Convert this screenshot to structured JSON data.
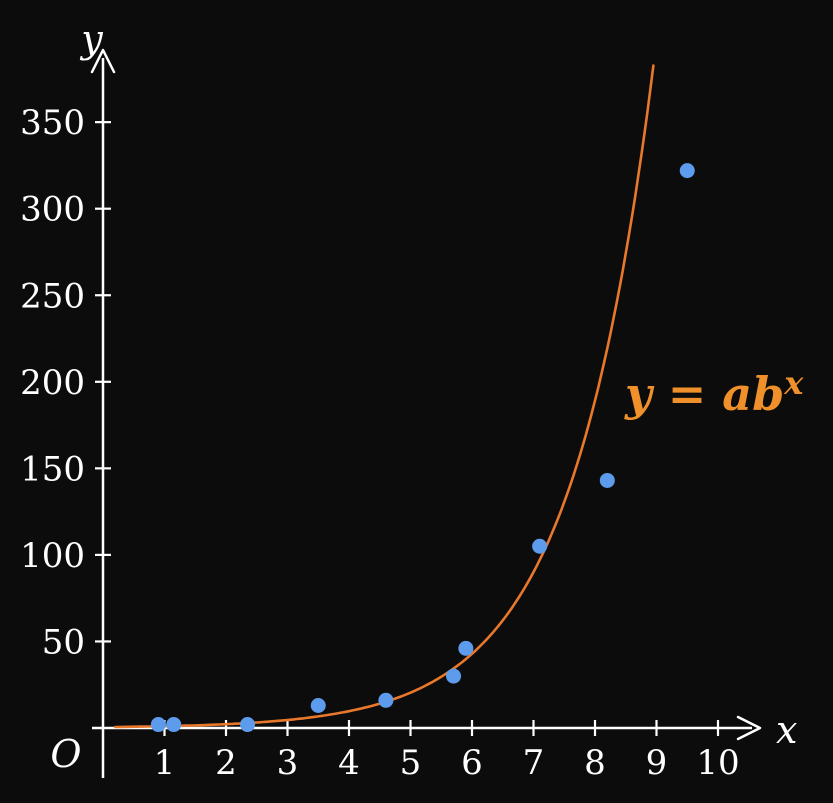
{
  "chart_data": {
    "type": "scatter",
    "title": "",
    "xlabel": "x",
    "ylabel": "y",
    "origin_label": "O",
    "x_ticks": [
      1,
      2,
      3,
      4,
      5,
      6,
      7,
      8,
      9,
      10
    ],
    "y_ticks": [
      50,
      100,
      150,
      200,
      250,
      300,
      350
    ],
    "xlim": [
      0,
      10.8
    ],
    "ylim": [
      0,
      385
    ],
    "grid": false,
    "legend_position": "none",
    "points": [
      {
        "x": 0.9,
        "y": 2
      },
      {
        "x": 1.15,
        "y": 2
      },
      {
        "x": 2.35,
        "y": 2
      },
      {
        "x": 3.5,
        "y": 13
      },
      {
        "x": 4.6,
        "y": 16
      },
      {
        "x": 5.7,
        "y": 30
      },
      {
        "x": 5.9,
        "y": 46
      },
      {
        "x": 7.1,
        "y": 105
      },
      {
        "x": 8.2,
        "y": 143
      },
      {
        "x": 9.5,
        "y": 322
      }
    ],
    "curve": {
      "model": "exponential",
      "formula": "y = a*b^x",
      "a": 0.5,
      "b": 2.1,
      "x_range": [
        0.2,
        8.95
      ],
      "label_base": "y = ab",
      "label_sup": "x"
    },
    "colors": {
      "background": "#0c0c0c",
      "axis": "#ffffff",
      "tick_text": "#ffffff",
      "points": "#5d9cec",
      "curve": "#e8782b",
      "curve_label": "#f0902a"
    }
  }
}
